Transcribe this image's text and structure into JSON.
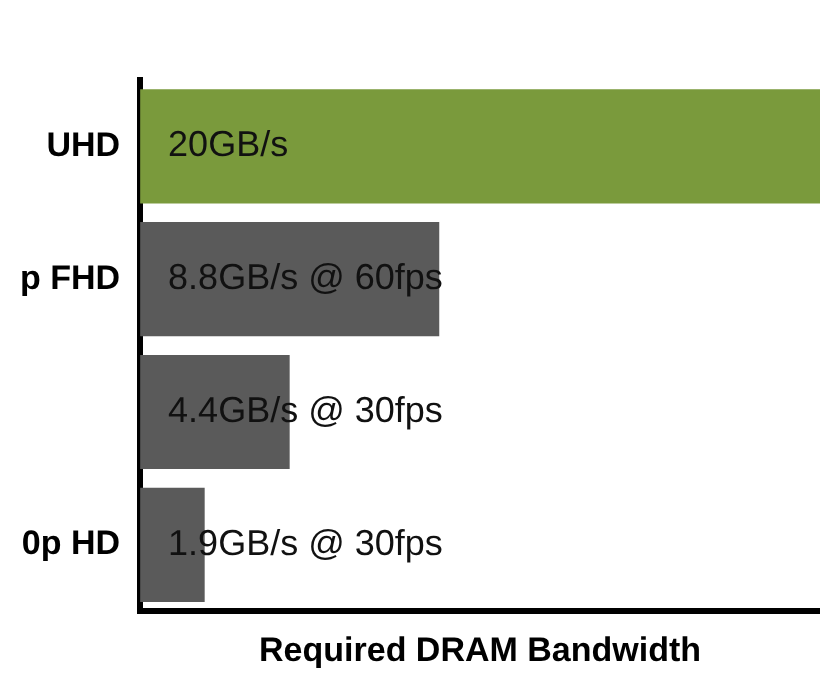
{
  "chart_data": {
    "type": "bar",
    "orientation": "horizontal",
    "xlabel": "Required DRAM Bandwidth",
    "categories": [
      "UHD",
      "p FHD",
      null,
      "0p HD"
    ],
    "values": [
      20,
      8.8,
      4.4,
      1.9
    ],
    "colors": [
      "#7a9a3c",
      "#5a5a5a",
      "#5a5a5a",
      "#5a5a5a"
    ],
    "value_labels": [
      "20GB/s",
      "8.8GB/s @ 60fps",
      "4.4GB/s @ 30fps",
      "1.9GB/s @ 30fps"
    ],
    "tick_labels": "y",
    "grid": false,
    "legend": false
  }
}
